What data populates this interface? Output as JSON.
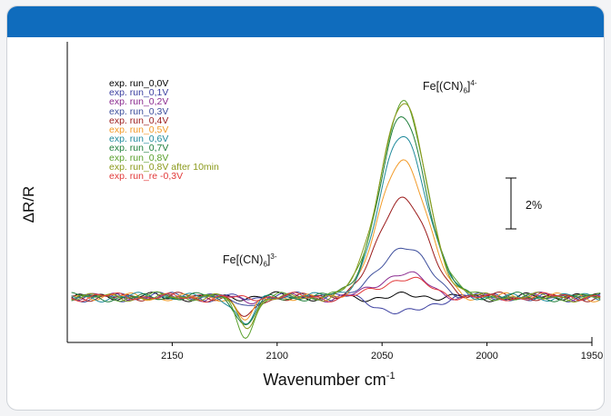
{
  "colors": {
    "header": "#0f6cbd",
    "background": "#f3f4f6",
    "card": "#ffffff"
  },
  "chart_data": {
    "type": "line",
    "title": "",
    "xlabel_text": "Wavenumber cm",
    "xlabel_sup": "-1",
    "ylabel": "ΔR/R",
    "xlim": [
      2200,
      1950
    ],
    "x_reversed": true,
    "xticks": [
      2150,
      2100,
      2050,
      2000,
      1950
    ],
    "grid": false,
    "legend_position": "top-left",
    "scale_bar": {
      "label": "2%",
      "value_percent": 2
    },
    "annotations": [
      {
        "base": "Fe[(CN)",
        "sub": "6",
        "rest": "]",
        "sup": "4-",
        "x": 2040,
        "peak": "positive"
      },
      {
        "base": "Fe[(CN)",
        "sub": "6",
        "rest": "]",
        "sup": "3-",
        "x": 2115,
        "peak": "negative"
      }
    ],
    "series": [
      {
        "name": "exp. run_0,0V",
        "color": "#000000",
        "peak_4": 0.0,
        "peak_3": 0.0,
        "noise_phase": 0.3
      },
      {
        "name": "exp. run_0,1V",
        "color": "#3b3fa0",
        "peak_4": -0.3,
        "peak_3": 0.04,
        "noise_phase": 1.1
      },
      {
        "name": "exp. run_0,2V",
        "color": "#8a2a8f",
        "peak_4": 0.45,
        "peak_3": -0.12,
        "noise_phase": 2.0
      },
      {
        "name": "exp. run_0,3V",
        "color": "#3d4e9c",
        "peak_4": 1.0,
        "peak_3": -0.22,
        "noise_phase": 2.7
      },
      {
        "name": "exp. run_0,4V",
        "color": "#9b1b1b",
        "peak_4": 2.0,
        "peak_3": -0.42,
        "noise_phase": 3.4
      },
      {
        "name": "exp. run_0,5V",
        "color": "#f29a27",
        "peak_4": 2.7,
        "peak_3": -0.48,
        "noise_phase": 4.1
      },
      {
        "name": "exp. run_0,6V",
        "color": "#1f8a9b",
        "peak_4": 3.2,
        "peak_3": -0.52,
        "noise_phase": 4.9
      },
      {
        "name": "exp. run_0,7V",
        "color": "#1e7e3a",
        "peak_4": 3.55,
        "peak_3": -0.55,
        "noise_phase": 5.6
      },
      {
        "name": "exp. run_0,8V",
        "color": "#5aa02c",
        "peak_4": 3.8,
        "peak_3": -0.72,
        "noise_phase": 0.8
      },
      {
        "name": "exp. run_0,8V after 10min",
        "color": "#8b9a1c",
        "peak_4": 3.8,
        "peak_3": -0.6,
        "noise_phase": 1.7
      },
      {
        "name": "exp. run_re -0,3V",
        "color": "#e23a3a",
        "peak_4": 0.35,
        "peak_3": -0.05,
        "noise_phase": 2.4
      }
    ]
  }
}
